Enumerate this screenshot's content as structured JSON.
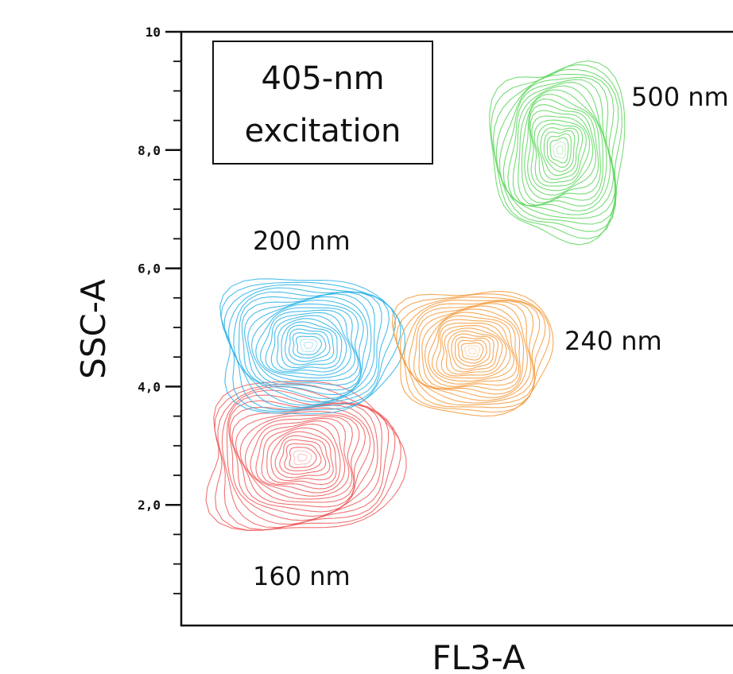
{
  "chart_data": {
    "type": "scatter",
    "subtype": "contour",
    "annotation_box": [
      "405-nm",
      "excitation"
    ],
    "xlabel": "FL3-A",
    "ylabel": "SSC-A",
    "ylim": [
      0,
      10
    ],
    "y_ticks": [
      {
        "value": 10,
        "label": "10"
      },
      {
        "value": 8,
        "label": "8,0"
      },
      {
        "value": 6,
        "label": "6,0"
      },
      {
        "value": 4,
        "label": "4,0"
      },
      {
        "value": 2,
        "label": "2,0"
      }
    ],
    "series": [
      {
        "name": "160 nm",
        "color": "#f05a5a",
        "center_y": 2.8,
        "label": "160 nm"
      },
      {
        "name": "200 nm",
        "color": "#2bb3e6",
        "center_y": 4.7,
        "label": "200 nm"
      },
      {
        "name": "240 nm",
        "color": "#f59a3c",
        "center_y": 4.6,
        "label": "240 nm"
      },
      {
        "name": "500 nm",
        "color": "#5fd65f",
        "center_y": 8.0,
        "label": "500 nm"
      }
    ]
  }
}
